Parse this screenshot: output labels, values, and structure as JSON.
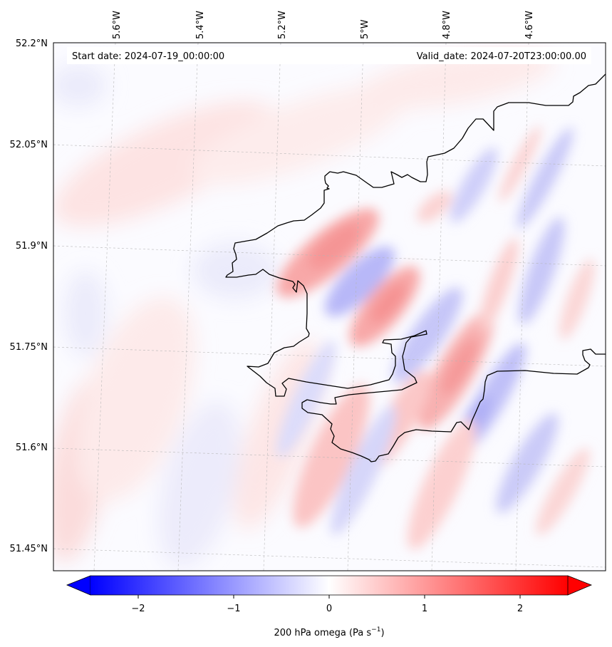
{
  "map": {
    "info_left": "Start date: 2024-07-19_00:00:00",
    "info_right": "Valid_date: 2024-07-20T23:00:00.00",
    "lon_labels": [
      "5.6°W",
      "5.4°W",
      "5.2°W",
      "5°W",
      "4.8°W",
      "4.6°W"
    ],
    "lat_labels": [
      "52.2°N",
      "52.05°N",
      "51.9°N",
      "51.75°N",
      "51.6°N",
      "51.45°N"
    ],
    "gridlines": true,
    "coastline_color": "#000000"
  },
  "colorbar": {
    "label": "200 hPa omega (Pa s",
    "label_exponent": "−1",
    "label_close": ")",
    "ticks": [
      "−2",
      "−1",
      "0",
      "1",
      "2"
    ],
    "tick_values": [
      -2,
      -1,
      0,
      1,
      2
    ],
    "range": [
      -2.5,
      2.5
    ],
    "extend": "both",
    "colormap": "bwr",
    "low_color": "#0000ff",
    "mid_color": "#ffffff",
    "high_color": "#ff0000"
  },
  "field_features": {
    "description_values": "omega bands oriented SW-NE, alternating positive (red) and negative (blue), amplitude up to about ±1",
    "peaks": [
      {
        "lon": -5.06,
        "lat": 51.88,
        "value": 0.9
      },
      {
        "lon": -4.95,
        "lat": 51.81,
        "value": -0.8
      },
      {
        "lon": -4.86,
        "lat": 51.78,
        "value": 0.8
      },
      {
        "lon": -4.78,
        "lat": 51.72,
        "value": 0.8
      },
      {
        "lon": -4.72,
        "lat": 51.66,
        "value": -0.9
      },
      {
        "lon": -4.62,
        "lat": 51.9,
        "value": -0.6
      },
      {
        "lon": -4.58,
        "lat": 51.98,
        "value": -0.6
      },
      {
        "lon": -4.82,
        "lat": 51.64,
        "value": 0.6
      },
      {
        "lon": -5.4,
        "lat": 52.01,
        "value": 0.3
      },
      {
        "lon": -5.7,
        "lat": 51.6,
        "value": 0.35
      },
      {
        "lon": -5.1,
        "lat": 51.52,
        "value": 0.5
      },
      {
        "lon": -4.6,
        "lat": 51.55,
        "value": -0.5
      }
    ]
  }
}
